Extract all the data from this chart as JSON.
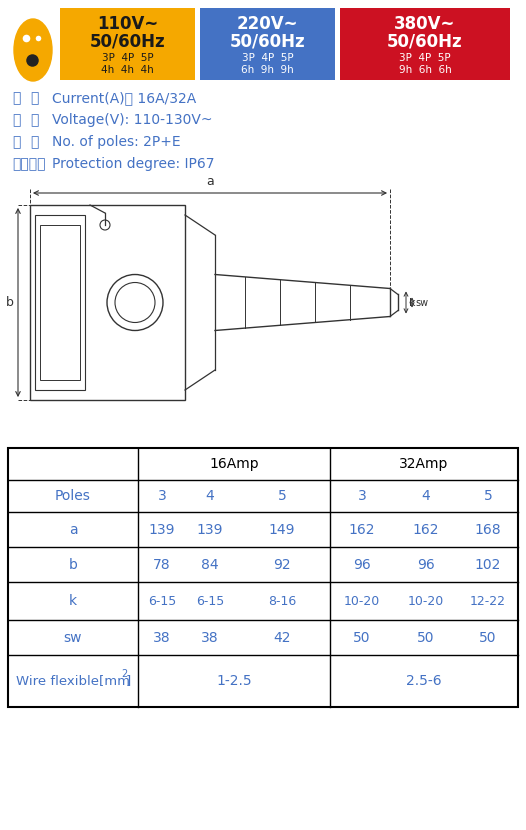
{
  "badge_yellow": {
    "color": "#F5A800",
    "line1": "110V~",
    "line2": "50/60Hz",
    "poles": "3P  4P  5P",
    "hours": "4h  4h  4h",
    "text_color": "#1a1a1a"
  },
  "badge_blue": {
    "color": "#4472C4",
    "line1": "220V~",
    "line2": "50/60Hz",
    "poles": "3P  4P  5P",
    "hours": "6h  9h  9h",
    "text_color": "#ffffff"
  },
  "badge_red": {
    "color": "#CC1122",
    "line1": "380V~",
    "line2": "50/60Hz",
    "poles": "3P  4P  5P",
    "hours": "9h  6h  6h",
    "text_color": "#ffffff"
  },
  "oval_color": "#F5A800",
  "spec_lines": [
    [
      "电",
      "流",
      "Current(A)： 16A/32A"
    ],
    [
      "电",
      "压",
      "Voltage(V): 110-130V~"
    ],
    [
      "极",
      "数",
      "No. of poles: 2P+E"
    ],
    [
      "防护等级",
      "",
      "Protection degree: IP67"
    ]
  ],
  "text_color": "#4472C4",
  "draw_color": "#333333",
  "bg_color": "#ffffff",
  "table": {
    "header_row": [
      "",
      "16Amp",
      "32Amp"
    ],
    "rows": [
      [
        "Poles",
        [
          "3",
          "4",
          "5"
        ],
        [
          "3",
          "4",
          "5"
        ]
      ],
      [
        "a",
        [
          "139",
          "139",
          "149"
        ],
        [
          "162",
          "162",
          "168"
        ]
      ],
      [
        "b",
        [
          "78",
          "84",
          "92"
        ],
        [
          "96",
          "96",
          "102"
        ]
      ],
      [
        "k",
        [
          "6-15",
          "6-15",
          "8-16"
        ],
        [
          "10-20",
          "10-20",
          "12-22"
        ]
      ],
      [
        "sw",
        [
          "38",
          "38",
          "42"
        ],
        [
          "50",
          "50",
          "50"
        ]
      ],
      [
        "Wire flexible[mm²]",
        [
          "1-2.5"
        ],
        [
          "2.5-6"
        ]
      ]
    ]
  }
}
